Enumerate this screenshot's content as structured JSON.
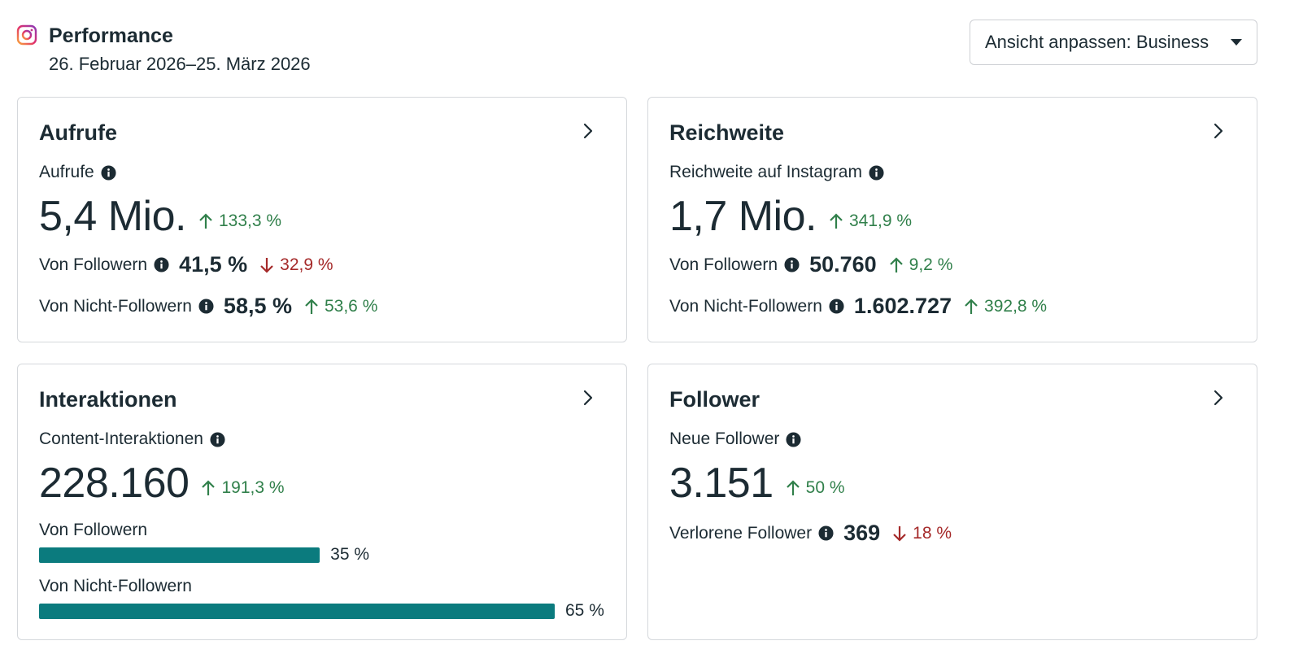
{
  "header": {
    "title": "Performance",
    "date_range": "26. Februar 2026–25. März 2026",
    "view_select": "Ansicht anpassen: Business"
  },
  "cards": {
    "aufrufe": {
      "title": "Aufrufe",
      "metric_label": "Aufrufe",
      "value": "5,4 Mio.",
      "change": "133,3 %",
      "followers_label": "Von Followern",
      "followers_value": "41,5 %",
      "followers_change": "32,9 %",
      "nonfollowers_label": "Von Nicht-Followern",
      "nonfollowers_value": "58,5 %",
      "nonfollowers_change": "53,6 %"
    },
    "reichweite": {
      "title": "Reichweite",
      "metric_label": "Reichweite auf Instagram",
      "value": "1,7 Mio.",
      "change": "341,9 %",
      "followers_label": "Von Followern",
      "followers_value": "50.760",
      "followers_change": "9,2 %",
      "nonfollowers_label": "Von Nicht-Followern",
      "nonfollowers_value": "1.602.727",
      "nonfollowers_change": "392,8 %"
    },
    "interaktionen": {
      "title": "Interaktionen",
      "metric_label": "Content-Interaktionen",
      "value": "228.160",
      "change": "191,3 %",
      "followers_label": "Von Followern",
      "followers_pct": "35 %",
      "followers_fraction": 0.35,
      "nonfollowers_label": "Von Nicht-Followern",
      "nonfollowers_pct": "65 %",
      "nonfollowers_fraction": 0.65
    },
    "follower": {
      "title": "Follower",
      "metric_label": "Neue Follower",
      "value": "3.151",
      "change": "50 %",
      "lost_label": "Verlorene Follower",
      "lost_value": "369",
      "lost_change": "18 %"
    }
  },
  "colors": {
    "positive": "#31804b",
    "negative": "#a52a2a",
    "bar": "#0b7b7e"
  },
  "icons": {
    "brand": "instagram-icon",
    "info": "info-icon",
    "chevron": "chevron-right-icon",
    "up": "arrow-up-icon",
    "down": "arrow-down-icon"
  }
}
